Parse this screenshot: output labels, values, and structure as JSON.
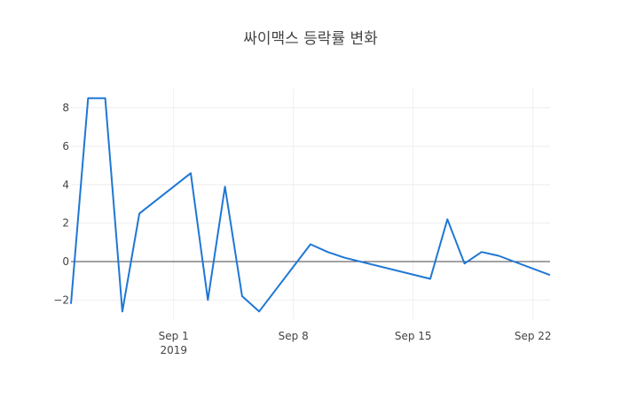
{
  "chart_data": {
    "type": "line",
    "title": "싸이맥스 등락률 변화",
    "xlabel": "",
    "ylabel": "",
    "x": [
      "2019-08-26",
      "2019-08-27",
      "2019-08-28",
      "2019-08-29",
      "2019-08-30",
      "2019-09-02",
      "2019-09-03",
      "2019-09-04",
      "2019-09-05",
      "2019-09-06",
      "2019-09-09",
      "2019-09-10",
      "2019-09-11",
      "2019-09-16",
      "2019-09-17",
      "2019-09-18",
      "2019-09-19",
      "2019-09-20",
      "2019-09-23"
    ],
    "values": [
      -2.2,
      8.5,
      8.5,
      -2.6,
      2.5,
      4.6,
      -2.0,
      3.9,
      -1.8,
      -2.6,
      0.9,
      0.5,
      0.2,
      -0.9,
      2.2,
      -0.1,
      0.5,
      0.3,
      -0.7
    ],
    "xlim": [
      "2019-08-26",
      "2019-09-23"
    ],
    "ylim": [
      -3,
      9
    ],
    "xticks": [
      {
        "date": "2019-09-01",
        "label": "Sep 1",
        "sublabel": "2019"
      },
      {
        "date": "2019-09-08",
        "label": "Sep 8",
        "sublabel": ""
      },
      {
        "date": "2019-09-15",
        "label": "Sep 15",
        "sublabel": ""
      },
      {
        "date": "2019-09-22",
        "label": "Sep 22",
        "sublabel": ""
      }
    ],
    "yticks": [
      -2,
      0,
      2,
      4,
      6,
      8
    ],
    "ytick_labels": [
      "−2",
      "0",
      "2",
      "4",
      "6",
      "8"
    ],
    "grid": true,
    "series_color": "#1f77d4",
    "zero_line_color": "#444444"
  }
}
